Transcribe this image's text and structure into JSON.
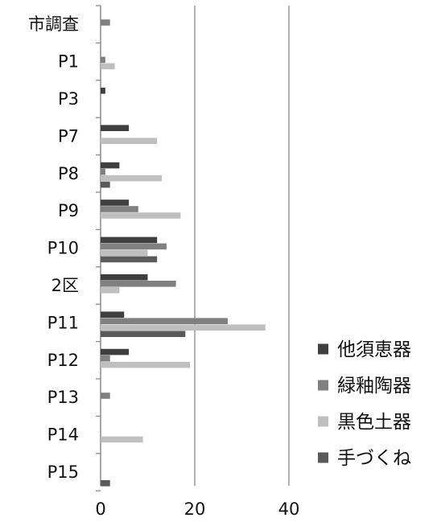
{
  "chart_data": {
    "type": "bar",
    "orientation": "horizontal",
    "title": "",
    "xlabel": "",
    "ylabel": "",
    "categories": [
      "市調査",
      "P1",
      "P3",
      "P7",
      "P8",
      "P9",
      "P10",
      "2区",
      "P11",
      "P12",
      "P13",
      "P14",
      "P15"
    ],
    "series": [
      {
        "name": "他須恵器",
        "color": "#3f3f3f",
        "values": [
          0,
          0,
          1,
          6,
          4,
          6,
          12,
          10,
          5,
          6,
          0,
          0,
          0
        ]
      },
      {
        "name": "緑釉陶器",
        "color": "#808080",
        "values": [
          2,
          1,
          0,
          0,
          1,
          8,
          14,
          16,
          27,
          2,
          2,
          0,
          0
        ]
      },
      {
        "name": "黒色土器",
        "color": "#bfbfbf",
        "values": [
          0,
          3,
          0,
          12,
          13,
          17,
          10,
          4,
          35,
          19,
          0,
          9,
          0
        ]
      },
      {
        "name": "手づくね",
        "color": "#5a5a5a",
        "values": [
          0,
          0,
          0,
          0,
          2,
          0,
          12,
          0,
          18,
          0,
          0,
          0,
          2
        ]
      }
    ],
    "xlim": [
      0,
      40
    ],
    "xticks": [
      0,
      20,
      40
    ],
    "grid": "vertical",
    "legend": "right"
  }
}
